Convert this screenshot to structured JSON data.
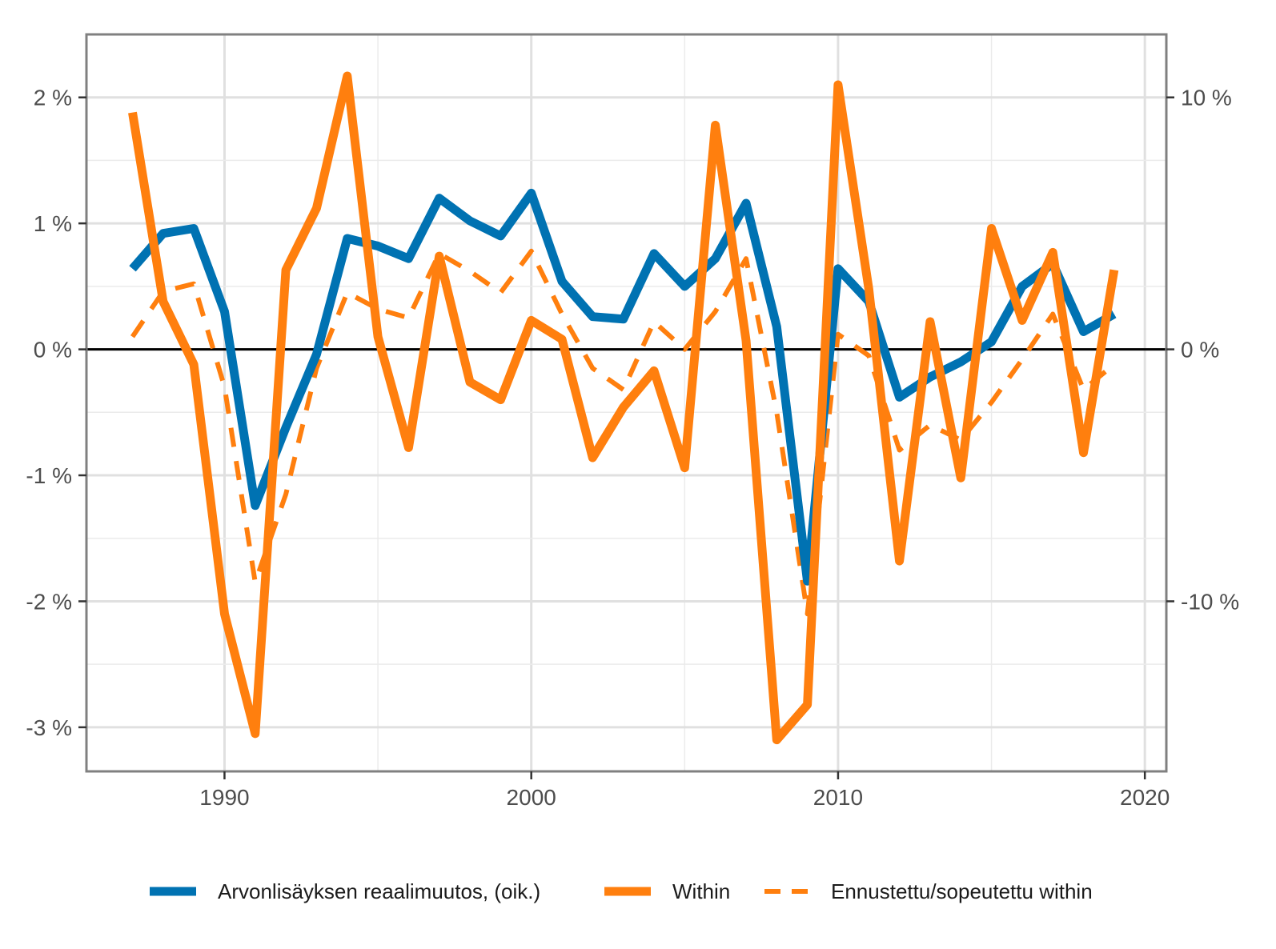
{
  "chart_data": {
    "type": "line",
    "title": "",
    "x": [
      1987,
      1988,
      1989,
      1990,
      1991,
      1992,
      1993,
      1994,
      1995,
      1996,
      1997,
      1998,
      1999,
      2000,
      2001,
      2002,
      2003,
      2004,
      2005,
      2006,
      2007,
      2008,
      2009,
      2010,
      2011,
      2012,
      2013,
      2014,
      2015,
      2016,
      2017,
      2018,
      2019
    ],
    "xlim": [
      1985.5,
      2020.7
    ],
    "x_ticks": [
      1990,
      2000,
      2010,
      2020
    ],
    "x_tick_labels": [
      "1990",
      "2000",
      "2010",
      "2020"
    ],
    "ylim_left": [
      -3.35,
      2.5
    ],
    "y_ticks_left": [
      2,
      1,
      0,
      -1,
      -2,
      -3
    ],
    "y_tick_labels_left": [
      "2 %",
      "1 %",
      "0 %",
      "-1 %",
      "-2 %",
      "-3 %"
    ],
    "ylim_right": [
      -16.75,
      12.5
    ],
    "y_ticks_right": [
      10,
      0,
      -10
    ],
    "y_tick_labels_right": [
      "10 %",
      "0 %",
      "-10 %"
    ],
    "grid": true,
    "legend_position": "bottom",
    "zero_line": true,
    "series": [
      {
        "name": "Arvonlisäyksen reaalimuutos, (oik.)",
        "axis": "right",
        "style": "solid",
        "color": "#0072b2",
        "values": [
          3.2,
          4.6,
          4.8,
          1.5,
          -6.2,
          -3.1,
          -0.2,
          4.4,
          4.1,
          3.6,
          6.0,
          5.1,
          4.5,
          6.2,
          2.7,
          1.3,
          1.2,
          3.8,
          2.5,
          3.6,
          5.8,
          0.9,
          -9.2,
          3.2,
          1.9,
          -1.9,
          -1.1,
          -0.5,
          0.3,
          2.5,
          3.4,
          0.7,
          1.4
        ]
      },
      {
        "name": "Within",
        "axis": "left",
        "style": "solid",
        "color": "#ff7f0e",
        "values": [
          1.88,
          0.38,
          -0.12,
          -2.1,
          -3.05,
          0.63,
          1.12,
          2.17,
          0.1,
          -0.78,
          0.74,
          -0.26,
          -0.4,
          0.23,
          0.08,
          -0.86,
          -0.46,
          -0.17,
          -0.94,
          1.78,
          0.07,
          -3.1,
          -2.82,
          2.1,
          0.48,
          -1.68,
          0.22,
          -1.02,
          0.96,
          0.23,
          0.77,
          -0.82,
          0.63
        ]
      },
      {
        "name": "Ennustettu/sopeutettu within",
        "axis": "left",
        "style": "dashed",
        "color": "#ff7f0e",
        "values": [
          0.1,
          0.46,
          0.52,
          -0.3,
          -1.85,
          -1.15,
          -0.15,
          0.45,
          0.32,
          0.25,
          0.76,
          0.62,
          0.45,
          0.78,
          0.28,
          -0.15,
          -0.32,
          0.22,
          0.0,
          0.3,
          0.72,
          -0.5,
          -2.1,
          0.12,
          -0.05,
          -0.8,
          -0.6,
          -0.72,
          -0.42,
          -0.08,
          0.28,
          -0.32,
          -0.12
        ]
      }
    ]
  }
}
